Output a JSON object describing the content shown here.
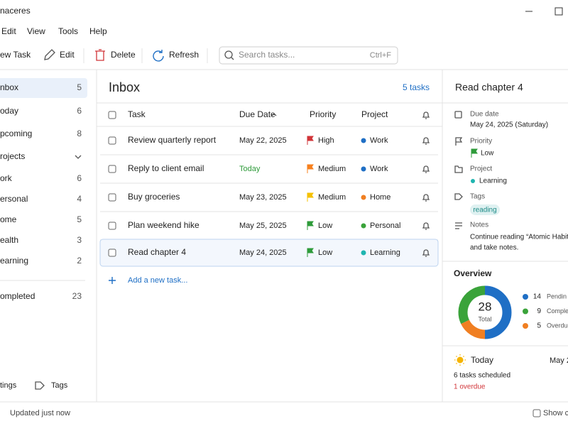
{
  "window": {
    "title": "naceres"
  },
  "menu": [
    "Edit",
    "View",
    "Tools",
    "Help"
  ],
  "toolbar": {
    "new_task": "ew Task",
    "edit": "Edit",
    "delete": "Delete",
    "refresh": "Refresh",
    "search_placeholder": "Search tasks...",
    "search_shortcut": "Ctrl+F"
  },
  "sidebar": {
    "views": [
      {
        "label": "nbox",
        "count": 5
      },
      {
        "label": "oday",
        "count": 6
      },
      {
        "label": "pcoming",
        "count": 8
      }
    ],
    "projects_header": "rojects",
    "projects": [
      {
        "label": "ork",
        "count": 6
      },
      {
        "label": "ersonal",
        "count": 4
      },
      {
        "label": "ome",
        "count": 5
      },
      {
        "label": "ealth",
        "count": 3
      },
      {
        "label": "earning",
        "count": 2
      }
    ],
    "completed": {
      "label": "ompleted",
      "count": 23
    },
    "footer": [
      "tings",
      "Tags"
    ]
  },
  "main": {
    "title": "Inbox",
    "count_label": "5 tasks",
    "columns": [
      "Task",
      "Due Date",
      "Priority",
      "Project"
    ],
    "tasks": [
      {
        "title": "Review quarterly report",
        "due": "May 22, 2025",
        "due_color": "#222222",
        "priority": "High",
        "flag_color": "#d13438",
        "project": "Work",
        "project_color": "#1f6fc5"
      },
      {
        "title": "Reply to client email",
        "due": "Today",
        "due_color": "#2e9b3a",
        "priority": "Medium",
        "flag_color": "#f7801e",
        "project": "Work",
        "project_color": "#1f6fc5"
      },
      {
        "title": "Buy groceries",
        "due": "May 23, 2025",
        "due_color": "#222222",
        "priority": "Medium",
        "flag_color": "#f5c000",
        "project": "Home",
        "project_color": "#f07f22"
      },
      {
        "title": "Plan weekend hike",
        "due": "May 25, 2025",
        "due_color": "#222222",
        "priority": "Low",
        "flag_color": "#2e9b3a",
        "project": "Personal",
        "project_color": "#3aa33a"
      },
      {
        "title": "Read chapter 4",
        "due": "May 24, 2025",
        "due_color": "#222222",
        "priority": "Low",
        "flag_color": "#2e9b3a",
        "project": "Learning",
        "project_color": "#1fb5b0"
      }
    ],
    "add_task": "Add a new task..."
  },
  "details": {
    "title": "Read chapter 4",
    "due_label": "Due date",
    "due_value": "May 24, 2025 (Saturday)",
    "priority_label": "Priority",
    "priority_value": "Low",
    "project_label": "Project",
    "project_value": "Learning",
    "tags_label": "Tags",
    "tag": "reading",
    "notes_label": "Notes",
    "notes": [
      "Continue reading “Atomic Habits”",
      "and take notes."
    ]
  },
  "overview": {
    "title": "Overview",
    "total": 28,
    "total_label": "Total",
    "series": [
      {
        "name": "Pendin",
        "value": 14,
        "color": "#1f6fc5"
      },
      {
        "name": "Complet",
        "value": 9,
        "color": "#3aa33a"
      },
      {
        "name": "Overdu",
        "value": 5,
        "color": "#f07f22"
      }
    ]
  },
  "today": {
    "title": "Today",
    "date": "May 2",
    "scheduled": "6 tasks scheduled",
    "overdue": "1 overdue"
  },
  "status": {
    "text": "Updated just now",
    "show": "Show co"
  }
}
